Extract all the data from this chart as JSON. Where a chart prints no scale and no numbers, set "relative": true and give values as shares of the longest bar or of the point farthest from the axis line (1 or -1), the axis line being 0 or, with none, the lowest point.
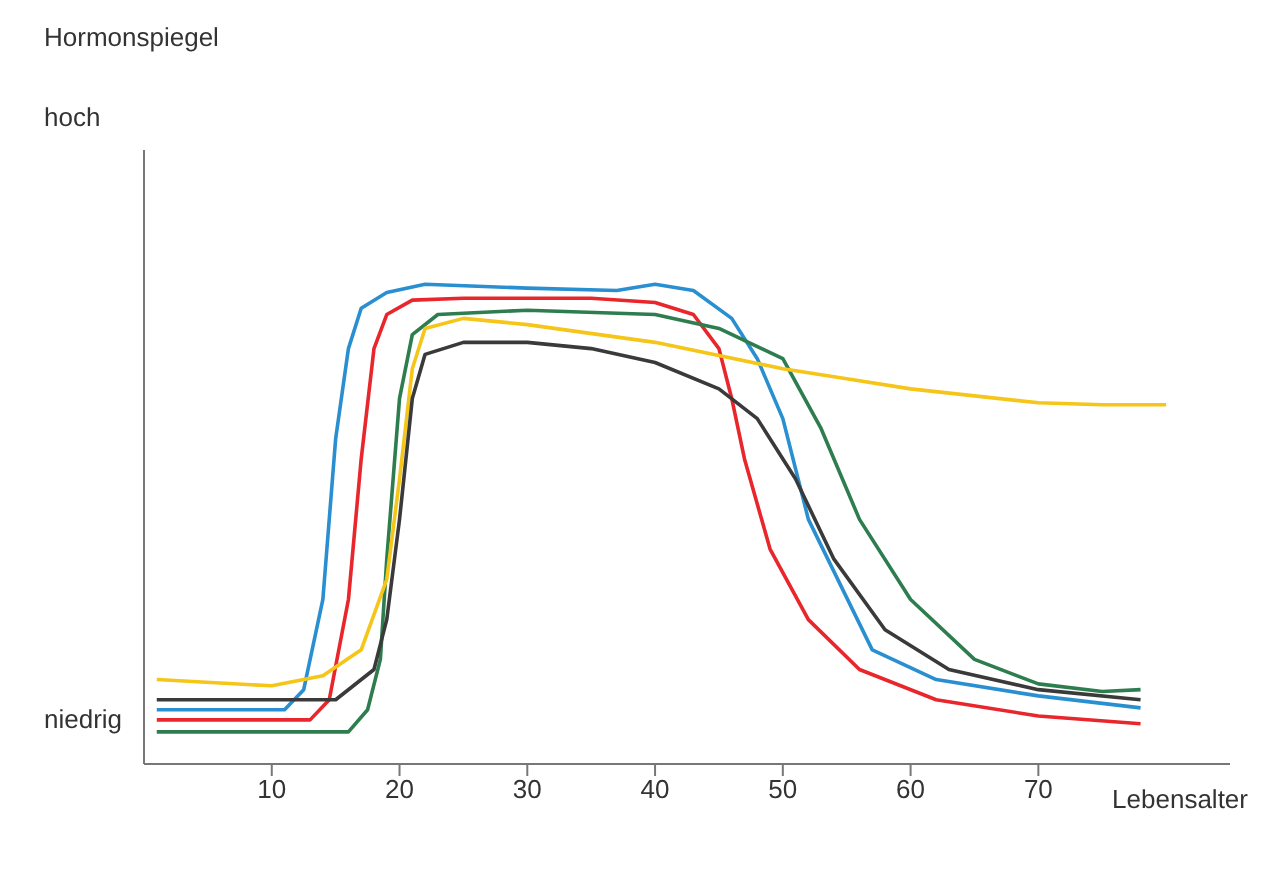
{
  "chart_data": {
    "type": "line",
    "xlabel": "Lebensalter",
    "relative": true,
    "annotations": [
      "Hormonspiegel",
      "hoch",
      "niedrig"
    ],
    "xlim": [
      0,
      85
    ],
    "xticks": [
      10,
      20,
      30,
      40,
      50,
      60,
      70
    ],
    "grid": false,
    "legend": false,
    "marker": "none",
    "line_style": "solid",
    "series": [
      {
        "color": "#2a8fd0",
        "x": [
          1,
          11,
          12.5,
          14,
          15,
          16,
          17,
          19,
          22,
          30,
          37,
          40,
          43,
          46,
          48,
          50,
          52,
          57,
          62,
          70,
          78
        ],
        "values": [
          0.113,
          0.113,
          0.155,
          0.343,
          0.678,
          0.866,
          0.95,
          0.983,
          1,
          0.992,
          0.987,
          1,
          0.987,
          0.929,
          0.845,
          0.72,
          0.51,
          0.238,
          0.176,
          0.142,
          0.117
        ]
      },
      {
        "color": "#e8262b",
        "x": [
          1,
          13,
          14.5,
          16,
          17,
          18,
          19,
          21,
          25,
          35,
          40,
          43,
          45,
          46,
          47,
          49,
          52,
          56,
          62,
          70,
          78
        ],
        "values": [
          0.092,
          0.092,
          0.134,
          0.343,
          0.636,
          0.866,
          0.937,
          0.967,
          0.971,
          0.971,
          0.962,
          0.937,
          0.866,
          0.762,
          0.636,
          0.448,
          0.301,
          0.197,
          0.134,
          0.1,
          0.084
        ]
      },
      {
        "color": "#2e7d4f",
        "x": [
          1,
          16,
          17.5,
          18.5,
          19,
          20,
          21,
          23,
          30,
          40,
          45,
          50,
          53,
          56,
          60,
          65,
          70,
          75,
          78
        ],
        "values": [
          0.067,
          0.067,
          0.113,
          0.218,
          0.427,
          0.762,
          0.895,
          0.937,
          0.946,
          0.937,
          0.908,
          0.845,
          0.699,
          0.51,
          0.343,
          0.218,
          0.167,
          0.151,
          0.155
        ]
      },
      {
        "color": "#f5c518",
        "x": [
          1,
          10,
          14,
          17,
          19,
          20,
          21,
          22,
          25,
          30,
          40,
          50,
          55,
          60,
          70,
          75,
          80
        ],
        "values": [
          0.176,
          0.163,
          0.184,
          0.238,
          0.385,
          0.594,
          0.824,
          0.908,
          0.929,
          0.916,
          0.879,
          0.824,
          0.803,
          0.782,
          0.753,
          0.749,
          0.749
        ]
      },
      {
        "color": "#3a3a3a",
        "x": [
          1,
          15,
          18,
          19,
          20,
          21,
          22,
          25,
          30,
          35,
          40,
          45,
          48,
          51,
          54,
          58,
          63,
          70,
          78
        ],
        "values": [
          0.134,
          0.134,
          0.197,
          0.301,
          0.51,
          0.762,
          0.854,
          0.879,
          0.879,
          0.866,
          0.837,
          0.782,
          0.72,
          0.594,
          0.427,
          0.28,
          0.197,
          0.155,
          0.134
        ]
      }
    ]
  }
}
